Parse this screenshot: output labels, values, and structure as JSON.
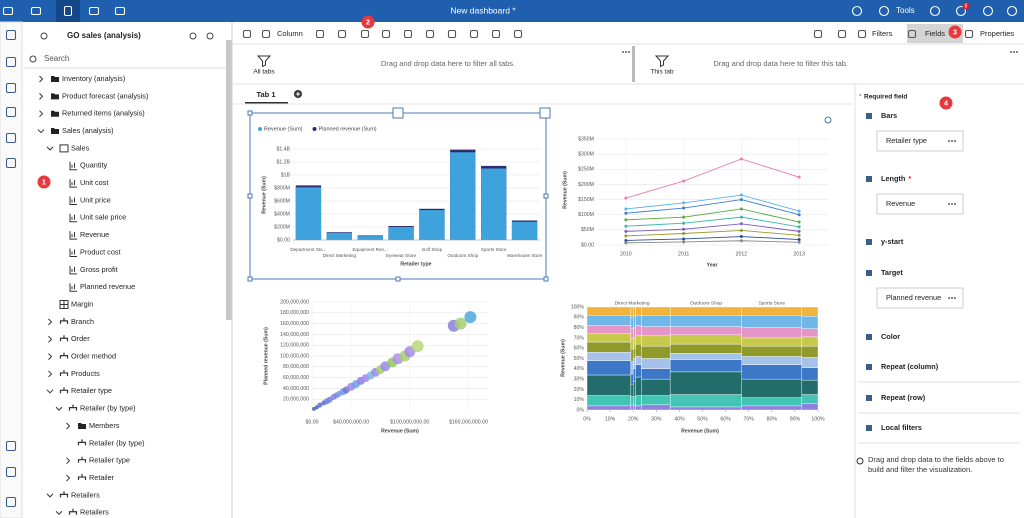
{
  "topbar": {
    "title": "New dashboard *",
    "tools": "Tools",
    "notifications": "8"
  },
  "source": {
    "name": "GO sales (analysis)",
    "search": "Search",
    "tree": [
      "Inventory (analysis)",
      "Product forecast (analysis)",
      "Returned items (analysis)",
      "Sales (analysis)",
      "Sales",
      "Quantity",
      "Unit cost",
      "Unit price",
      "Unit sale price",
      "Revenue",
      "Product cost",
      "Gross profit",
      "Planned revenue",
      "Margin",
      "Branch",
      "Order",
      "Order method",
      "Products",
      "Retailer type",
      "Retailer (by type)",
      "Members",
      "Retailer (by type)",
      "Retailer type",
      "Retailer",
      "Retailers",
      "Retailers"
    ]
  },
  "toolbar": {
    "column": "Column",
    "filters": "Filters",
    "fields": "Fields",
    "properties": "Properties"
  },
  "badges": [
    "1",
    "2",
    "3",
    "4"
  ],
  "filters": {
    "all_tabs": "All tabs",
    "all_hint": "Drag and drop data here to filter all tabs.",
    "this_tab": "This tab",
    "this_hint": "Drag and drop data here to filter this tab."
  },
  "tabs": [
    "Tab 1"
  ],
  "fields_panel": {
    "required_mark": "*",
    "required": "Required field",
    "slots": [
      {
        "label": "Bars",
        "value": "Retailer type"
      },
      {
        "label": "Length",
        "value": "Revenue"
      },
      {
        "label": "y-start"
      },
      {
        "label": "Target",
        "value": "Planned revenue"
      },
      {
        "label": "Color"
      },
      {
        "label": "Repeat (column)"
      },
      {
        "label": "Repeat (row)"
      },
      {
        "label": "Local filters"
      }
    ],
    "hint": "Drag and drop data to the fields above to build and filter the visualization."
  },
  "chart_data": [
    {
      "type": "bar",
      "y_label": "Revenue (Sum)",
      "x_label": "Retailer type",
      "categories": [
        "Department Sto...",
        "Direct Marketing",
        "Equipment Ren...",
        "Eyewear Store",
        "Golf Shop",
        "Outdoors Shop",
        "Sports Store",
        "Warehouse Store"
      ],
      "series": [
        {
          "name": "Planned revenue (Sum)",
          "color": "#2d2a6e",
          "values": [
            840000000,
            120000000,
            70000000,
            215000000,
            480000000,
            1390000000,
            1140000000,
            300000000
          ]
        },
        {
          "name": "Revenue (Sum)",
          "color": "#3ea3dc",
          "values": [
            810000000,
            110000000,
            60000000,
            200000000,
            460000000,
            1350000000,
            1100000000,
            280000000
          ]
        }
      ],
      "legend_order": [
        1,
        0
      ],
      "ylim": [
        0,
        1400000000
      ],
      "yticks": [
        {
          "value": 0,
          "label": "$0.00"
        },
        {
          "value": 200000000,
          "label": "$200M"
        },
        {
          "value": 400000000,
          "label": "$400M"
        },
        {
          "value": 600000000,
          "label": "$600M"
        },
        {
          "value": 800000000,
          "label": "$800M"
        },
        {
          "value": 1000000000,
          "label": "$1B"
        },
        {
          "value": 1200000000,
          "label": "$1.2B"
        },
        {
          "value": 1400000000,
          "label": "$1.4B"
        }
      ],
      "grid": true
    },
    {
      "type": "line",
      "y_label": "Revenue (Sum)",
      "x_label": "Year",
      "categories": [
        "2010",
        "2011",
        "2012",
        "2013"
      ],
      "series": [
        {
          "color": "#e87fb0",
          "values": [
            155000000,
            211000000,
            284000000,
            224000000
          ]
        },
        {
          "color": "#5db4e6",
          "values": [
            119000000,
            139000000,
            165000000,
            112000000
          ]
        },
        {
          "color": "#3a7fd0",
          "values": [
            105000000,
            122000000,
            150000000,
            100000000
          ]
        },
        {
          "color": "#5aa83c",
          "values": [
            83000000,
            92000000,
            119000000,
            76000000
          ]
        },
        {
          "color": "#3cb8a0",
          "values": [
            62000000,
            72000000,
            92000000,
            60000000
          ]
        },
        {
          "color": "#7c5fc7",
          "values": [
            45000000,
            52000000,
            70000000,
            45000000
          ]
        },
        {
          "color": "#9a9a2a",
          "values": [
            30000000,
            38000000,
            48000000,
            32000000
          ]
        },
        {
          "color": "#2b4c9a",
          "values": [
            15000000,
            20000000,
            28000000,
            18000000
          ]
        },
        {
          "color": "#888888",
          "values": [
            7000000,
            10000000,
            14000000,
            9000000
          ]
        }
      ],
      "ylim": [
        0,
        350000000
      ],
      "yticks": [
        {
          "value": 0,
          "label": "$0.00"
        },
        {
          "value": 50000000,
          "label": "$50M"
        },
        {
          "value": 100000000,
          "label": "$100M"
        },
        {
          "value": 150000000,
          "label": "$150M"
        },
        {
          "value": 200000000,
          "label": "$200M"
        },
        {
          "value": 250000000,
          "label": "$250M"
        },
        {
          "value": 300000000,
          "label": "$300M"
        },
        {
          "value": 350000000,
          "label": "$350M"
        }
      ],
      "grid": true
    },
    {
      "type": "scatter",
      "y_label": "Planned revenue (Sum)",
      "x_label": "Revenue (Sum)",
      "x": [
        2000000,
        5000000,
        8000000,
        12000000,
        15000000,
        18000000,
        22000000,
        25000000,
        28000000,
        32000000,
        35000000,
        40000000,
        45000000,
        50000000,
        55000000,
        60000000,
        65000000,
        70000000,
        75000000,
        82000000,
        88000000,
        95000000,
        100000000,
        108000000,
        145000000,
        152000000,
        162000000
      ],
      "y": [
        2000000,
        5000000,
        9000000,
        13000000,
        16000000,
        19000000,
        24000000,
        27000000,
        30000000,
        34000000,
        37000000,
        43000000,
        48000000,
        54000000,
        59000000,
        64000000,
        70000000,
        75000000,
        81000000,
        88000000,
        95000000,
        100000000,
        108000000,
        118000000,
        156000000,
        160000000,
        172000000
      ],
      "sizes": [
        2,
        2,
        2.5,
        2.5,
        3,
        3,
        3,
        3,
        3,
        3.5,
        3.5,
        4,
        4,
        4,
        4,
        4,
        4.5,
        4.5,
        5,
        5,
        5.5,
        5.5,
        5.5,
        6,
        6,
        6,
        6
      ],
      "colors": [
        "#4a5fc1",
        "#4a5fc1",
        "#5a6fd0",
        "#5a6fd0",
        "#6d7fe0",
        "#6d7fe0",
        "#8a7fe0",
        "#8a7fe0",
        "#6aa0e8",
        "#6aa0e8",
        "#7b6fd8",
        "#9a8ae6",
        "#6aa0e8",
        "#8a7fe0",
        "#a58ae8",
        "#7ab8e0",
        "#9a8ae6",
        "#a6d070",
        "#9a8ae6",
        "#8fc860",
        "#b090e8",
        "#a6d070",
        "#a58ae8",
        "#b5d87a",
        "#8a7fe0",
        "#a6d070",
        "#4fa8dc"
      ],
      "xlim": [
        0,
        180000000
      ],
      "xticks": [
        {
          "value": 0,
          "label": "$0.00"
        },
        {
          "value": 40000000,
          "label": "$40,000,000.00"
        },
        {
          "value": 100000000,
          "label": "$100,000,000.00"
        },
        {
          "value": 160000000,
          "label": "$160,000,000.00"
        }
      ],
      "ylim": [
        0,
        200000000
      ],
      "yticks": [
        {
          "value": 20000000,
          "label": "20,000,000"
        },
        {
          "value": 40000000,
          "label": "40,000,000"
        },
        {
          "value": 60000000,
          "label": "60,000,000"
        },
        {
          "value": 80000000,
          "label": "80,000,000"
        },
        {
          "value": 100000000,
          "label": "100,000,000"
        },
        {
          "value": 120000000,
          "label": "120,000,000"
        },
        {
          "value": 140000000,
          "label": "140,000,000"
        },
        {
          "value": 160000000,
          "label": "160,000,000"
        },
        {
          "value": 180000000,
          "label": "180,000,000"
        },
        {
          "value": 200000000,
          "label": "200,000,000"
        }
      ],
      "grid": true
    },
    {
      "type": "marimekko",
      "y_label": "Revenue (Sum)",
      "x_label": "Revenue (Sum)",
      "categories": [
        null,
        "Direct Marketing",
        null,
        null,
        null,
        "Outdoors Shop",
        "Sports Store",
        null
      ],
      "widths": [
        19,
        1,
        1,
        2.5,
        12.5,
        31,
        26,
        7
      ],
      "series": [
        {
          "color": "#8f7fe0",
          "values": [
            4,
            5,
            4,
            4,
            5,
            3,
            4,
            6
          ]
        },
        {
          "color": "#42c5b5",
          "values": [
            10,
            8,
            9,
            10,
            9,
            12,
            8,
            9
          ]
        },
        {
          "color": "#226d6b",
          "values": [
            20,
            12,
            15,
            18,
            16,
            22,
            18,
            14
          ]
        },
        {
          "color": "#3d78c8",
          "values": [
            14,
            10,
            12,
            12,
            10,
            12,
            14,
            12
          ]
        },
        {
          "color": "#a7c2ea",
          "values": [
            8,
            12,
            10,
            8,
            10,
            6,
            8,
            10
          ]
        },
        {
          "color": "#8f9a2a",
          "values": [
            10,
            12,
            10,
            12,
            12,
            9,
            10,
            11
          ]
        },
        {
          "color": "#c8c84a",
          "values": [
            8,
            10,
            10,
            8,
            10,
            9,
            8,
            9
          ]
        },
        {
          "color": "#e596c9",
          "values": [
            8,
            10,
            10,
            10,
            9,
            8,
            10,
            8
          ]
        },
        {
          "color": "#6fb7e8",
          "values": [
            10,
            11,
            12,
            10,
            11,
            11,
            12,
            12
          ]
        },
        {
          "color": "#f0b43c",
          "values": [
            8,
            10,
            8,
            8,
            8,
            8,
            8,
            9
          ]
        }
      ],
      "xlim": [
        0,
        100
      ],
      "ylim": [
        0,
        100
      ],
      "xticks": [
        {
          "value": 0,
          "label": "0%"
        },
        {
          "value": 10,
          "label": "10%"
        },
        {
          "value": 20,
          "label": "20%"
        },
        {
          "value": 30,
          "label": "30%"
        },
        {
          "value": 40,
          "label": "40%"
        },
        {
          "value": 50,
          "label": "50%"
        },
        {
          "value": 60,
          "label": "60%"
        },
        {
          "value": 70,
          "label": "70%"
        },
        {
          "value": 80,
          "label": "80%"
        },
        {
          "value": 90,
          "label": "90%"
        },
        {
          "value": 100,
          "label": "100%"
        }
      ],
      "yticks": [
        {
          "value": 0,
          "label": "0%"
        },
        {
          "value": 10,
          "label": "10%"
        },
        {
          "value": 20,
          "label": "20%"
        },
        {
          "value": 30,
          "label": "30%"
        },
        {
          "value": 40,
          "label": "40%"
        },
        {
          "value": 50,
          "label": "50%"
        },
        {
          "value": 60,
          "label": "60%"
        },
        {
          "value": 70,
          "label": "70%"
        },
        {
          "value": 80,
          "label": "80%"
        },
        {
          "value": 90,
          "label": "90%"
        },
        {
          "value": 100,
          "label": "100%"
        }
      ]
    }
  ]
}
